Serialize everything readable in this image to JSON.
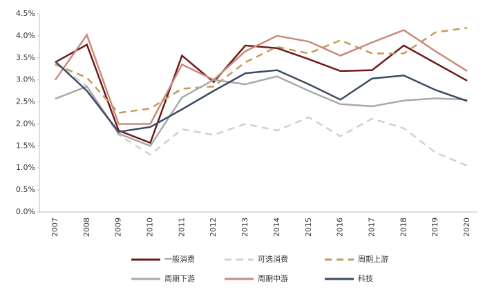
{
  "chart_data": {
    "type": "line",
    "categories": [
      "2007",
      "2008",
      "2009",
      "2010",
      "2011",
      "2012",
      "2013",
      "2014",
      "2015",
      "2016",
      "2017",
      "2018",
      "2019",
      "2020"
    ],
    "ylim": [
      0,
      4.5
    ],
    "yticks": [
      {
        "value": 0,
        "label": "0.0%"
      },
      {
        "value": 0.5,
        "label": "0.5%"
      },
      {
        "value": 1,
        "label": "1.0%"
      },
      {
        "value": 1.5,
        "label": "1.5%"
      },
      {
        "value": 2,
        "label": "2.0%"
      },
      {
        "value": 2.5,
        "label": "2.5%"
      },
      {
        "value": 3,
        "label": "3.0%"
      },
      {
        "value": 3.5,
        "label": "3.5%"
      },
      {
        "value": 4,
        "label": "4.0%"
      },
      {
        "value": 4.5,
        "label": "4.5%"
      }
    ],
    "grid": false,
    "series": [
      {
        "name": "一般消费",
        "color": "#6b1a1a",
        "dashed": false,
        "values": [
          3.4,
          3.8,
          1.85,
          1.57,
          3.55,
          2.95,
          3.78,
          3.72,
          3.47,
          3.2,
          3.22,
          3.78,
          3.38,
          2.98
        ]
      },
      {
        "name": "可选消费",
        "color": "#d0d0d0",
        "dashed": true,
        "values": [
          3.4,
          2.85,
          1.75,
          1.3,
          1.88,
          1.75,
          2.0,
          1.85,
          2.15,
          1.72,
          2.12,
          1.9,
          1.35,
          1.05
        ]
      },
      {
        "name": "周期上游",
        "color": "#c49a5c",
        "dashed": true,
        "values": [
          3.35,
          3.05,
          2.25,
          2.35,
          2.8,
          2.85,
          3.4,
          3.75,
          3.6,
          3.9,
          3.6,
          3.6,
          4.08,
          4.18
        ]
      },
      {
        "name": "周期下游",
        "color": "#a9a9a9",
        "dashed": false,
        "values": [
          2.57,
          2.85,
          1.78,
          1.5,
          2.6,
          3.0,
          2.9,
          3.08,
          2.75,
          2.45,
          2.4,
          2.53,
          2.58,
          2.55
        ]
      },
      {
        "name": "周期中游",
        "color": "#c98a7a",
        "dashed": false,
        "values": [
          3.0,
          4.02,
          2.0,
          2.0,
          3.35,
          3.0,
          3.65,
          4.0,
          3.87,
          3.55,
          3.85,
          4.13,
          3.65,
          3.2
        ]
      },
      {
        "name": "科技",
        "color": "#3c4a66",
        "dashed": false,
        "values": [
          3.42,
          2.75,
          1.82,
          1.93,
          2.33,
          2.75,
          3.15,
          3.22,
          2.9,
          2.55,
          3.03,
          3.1,
          2.77,
          2.52
        ]
      }
    ]
  }
}
